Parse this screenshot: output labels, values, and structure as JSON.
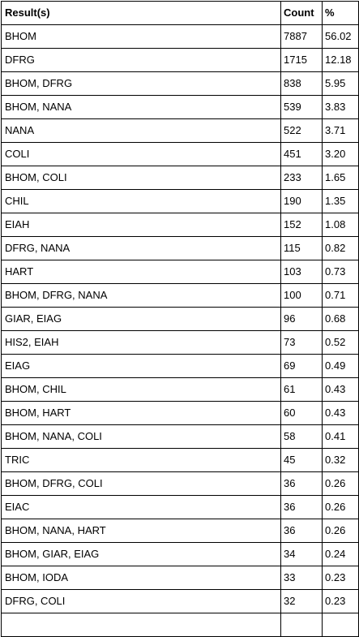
{
  "table": {
    "headers": [
      "Result(s)",
      "Count",
      "%"
    ],
    "rows": [
      [
        "BHOM",
        "7887",
        "56.02"
      ],
      [
        "DFRG",
        "1715",
        "12.18"
      ],
      [
        "BHOM, DFRG",
        "838",
        "5.95"
      ],
      [
        "BHOM, NANA",
        "539",
        "3.83"
      ],
      [
        "NANA",
        "522",
        "3.71"
      ],
      [
        "COLI",
        "451",
        "3.20"
      ],
      [
        "BHOM, COLI",
        "233",
        "1.65"
      ],
      [
        "CHIL",
        "190",
        "1.35"
      ],
      [
        "EIAH",
        "152",
        "1.08"
      ],
      [
        "DFRG, NANA",
        "115",
        "0.82"
      ],
      [
        "HART",
        "103",
        "0.73"
      ],
      [
        "BHOM, DFRG, NANA",
        "100",
        "0.71"
      ],
      [
        "GIAR, EIAG",
        "96",
        "0.68"
      ],
      [
        "HIS2, EIAH",
        "73",
        "0.52"
      ],
      [
        "EIAG",
        "69",
        "0.49"
      ],
      [
        "BHOM, CHIL",
        "61",
        "0.43"
      ],
      [
        "BHOM, HART",
        "60",
        "0.43"
      ],
      [
        "BHOM, NANA, COLI",
        "58",
        "0.41"
      ],
      [
        "TRIC",
        "45",
        "0.32"
      ],
      [
        "BHOM, DFRG, COLI",
        "36",
        "0.26"
      ],
      [
        "EIAC",
        "36",
        "0.26"
      ],
      [
        "BHOM, NANA, HART",
        "36",
        "0.26"
      ],
      [
        "BHOM, GIAR, EIAG",
        "34",
        "0.24"
      ],
      [
        "BHOM, IODA",
        "33",
        "0.23"
      ],
      [
        "DFRG, COLI",
        "32",
        "0.23"
      ],
      [
        "",
        "",
        ""
      ]
    ]
  }
}
